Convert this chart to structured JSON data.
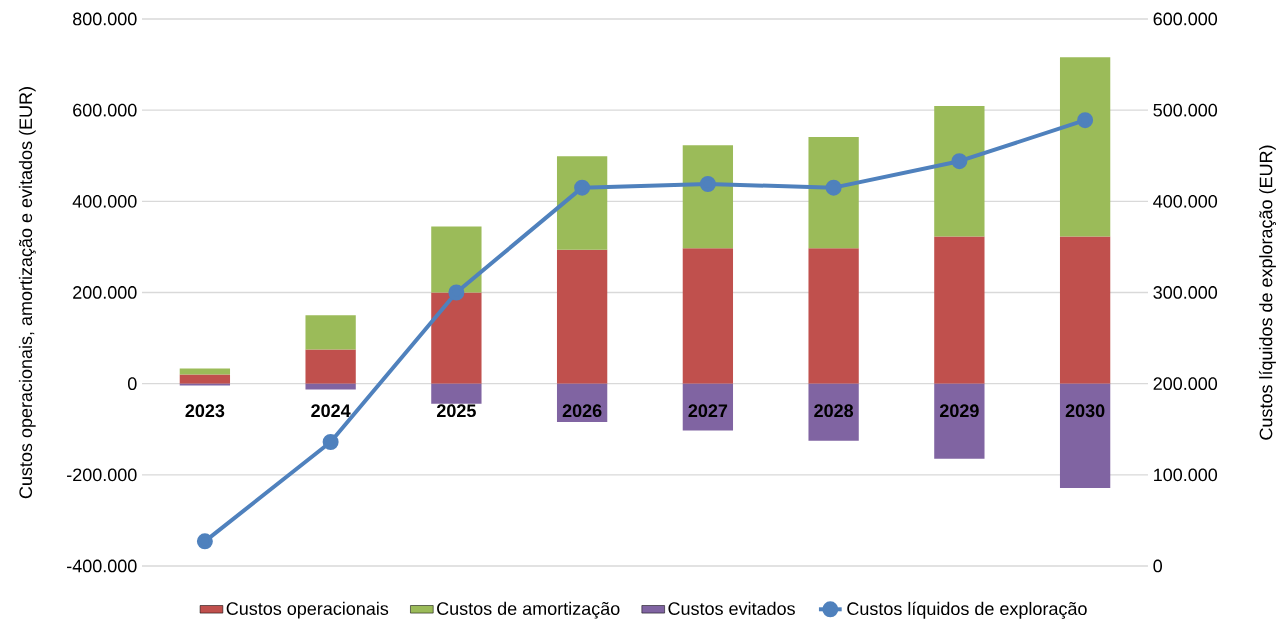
{
  "chart_data": {
    "type": "bar",
    "stacked": true,
    "categories": [
      "2023",
      "2024",
      "2025",
      "2026",
      "2027",
      "2028",
      "2029",
      "2030"
    ],
    "series": [
      {
        "name": "Custos operacionais",
        "color": "#c0504d",
        "values": [
          20000,
          75000,
          200000,
          294000,
          297000,
          297000,
          323000,
          323000
        ]
      },
      {
        "name": "Custos de amortização",
        "color": "#9bbb59",
        "values": [
          13000,
          75000,
          145000,
          205000,
          226000,
          244000,
          286000,
          393000
        ]
      },
      {
        "name": "Custos evitados",
        "color": "#8064a2",
        "values": [
          -4000,
          -13000,
          -44000,
          -84000,
          -103000,
          -125000,
          -165000,
          -229000
        ]
      },
      {
        "name": "Custos líquidos de exploração",
        "type": "line",
        "axis": "y2",
        "color": "#4f81bd",
        "values": [
          27000,
          136000,
          300000,
          415000,
          419000,
          415000,
          444000,
          489000
        ]
      }
    ],
    "ylabel": "Custos operacionais, amortização e evitados (EUR)",
    "y2label": "Custos líquidos de exploração (EUR)",
    "ylim": [
      -400000,
      800000
    ],
    "yticks": [
      {
        "value": -400000,
        "label": "-400.000"
      },
      {
        "value": -200000,
        "label": "-200.000"
      },
      0,
      {
        "value": 200000,
        "label": "200.000"
      },
      {
        "value": 400000,
        "label": "400.000"
      },
      {
        "value": 600000,
        "label": "600.000"
      },
      {
        "value": 800000,
        "label": "800.000"
      }
    ],
    "y2lim": [
      0,
      600000
    ],
    "y2ticks": [
      0,
      {
        "value": 100000,
        "label": "100.000"
      },
      {
        "value": 200000,
        "label": "200.000"
      },
      {
        "value": 300000,
        "label": "300.000"
      },
      {
        "value": 400000,
        "label": "400.000"
      },
      {
        "value": 500000,
        "label": "500.000"
      },
      {
        "value": 600000,
        "label": "600.000"
      }
    ],
    "grid": "y",
    "legend": "bottom",
    "marker": "circle",
    "line_style": "solid"
  }
}
